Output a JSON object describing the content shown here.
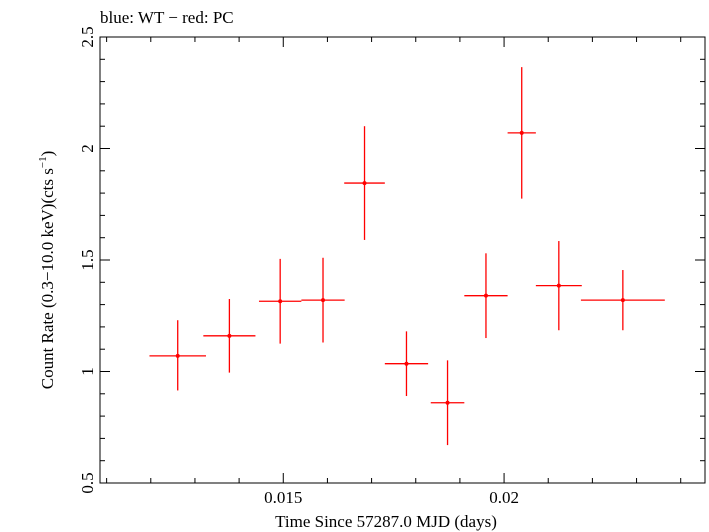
{
  "header": {
    "title": "blue: WT − red: PC"
  },
  "chart_data": {
    "type": "scatter",
    "title": "blue: WT − red: PC",
    "xlabel": "Time Since 57287.0 MJD (days)",
    "ylabel_main": "Count Rate (0.3−10.0 keV)(cts s",
    "ylabel_sup": "−1",
    "ylabel_end": ")",
    "xlim": [
      0.01085,
      0.02455
    ],
    "ylim": [
      0.5,
      2.5
    ],
    "x_ticks": [
      0.015,
      0.02
    ],
    "x_tick_labels": [
      "0.015",
      "0.02"
    ],
    "y_ticks": [
      0.5,
      1,
      1.5,
      2,
      2.5
    ],
    "y_tick_labels": [
      "0.5",
      "1",
      "1.5",
      "2",
      "2.5"
    ],
    "grid": false,
    "series": [
      {
        "color": "#ff0000",
        "points": [
          {
            "x": 0.01261,
            "y": 1.07,
            "xerr": 0.00064,
            "yerr_low": 0.155,
            "yerr_high": 0.16
          },
          {
            "x": 0.01378,
            "y": 1.16,
            "xerr": 0.00059,
            "yerr_low": 0.165,
            "yerr_high": 0.165
          },
          {
            "x": 0.01493,
            "y": 1.315,
            "xerr": 0.00048,
            "yerr_low": 0.19,
            "yerr_high": 0.19
          },
          {
            "x": 0.0159,
            "y": 1.32,
            "xerr": 0.00049,
            "yerr_low": 0.19,
            "yerr_high": 0.19
          },
          {
            "x": 0.01684,
            "y": 1.845,
            "xerr": 0.00046,
            "yerr_low": 0.255,
            "yerr_high": 0.255
          },
          {
            "x": 0.01779,
            "y": 1.035,
            "xerr": 0.00049,
            "yerr_low": 0.145,
            "yerr_high": 0.145
          },
          {
            "x": 0.01872,
            "y": 0.86,
            "xerr": 0.00038,
            "yerr_low": 0.19,
            "yerr_high": 0.19
          },
          {
            "x": 0.01959,
            "y": 1.34,
            "xerr": 0.00049,
            "yerr_low": 0.19,
            "yerr_high": 0.19
          },
          {
            "x": 0.0204,
            "y": 2.07,
            "xerr": 0.00032,
            "yerr_low": 0.295,
            "yerr_high": 0.295
          },
          {
            "x": 0.02124,
            "y": 1.385,
            "xerr": 0.00052,
            "yerr_low": 0.2,
            "yerr_high": 0.2
          },
          {
            "x": 0.02269,
            "y": 1.32,
            "xerr": 0.00095,
            "yerr_low": 0.135,
            "yerr_high": 0.135
          }
        ]
      }
    ]
  }
}
